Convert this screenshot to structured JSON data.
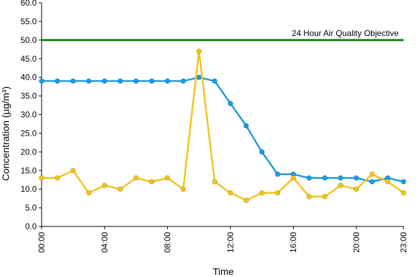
{
  "chart_data": {
    "type": "line",
    "title": "",
    "xlabel": "Time",
    "ylabel": "Concentration (µg/m³)",
    "ylim": [
      0,
      60
    ],
    "yticks": [
      "0.0",
      "5.0",
      "10.0",
      "15.0",
      "20.0",
      "25.0",
      "30.0",
      "35.0",
      "40.0",
      "45.0",
      "50.0",
      "55.0",
      "60.0"
    ],
    "xlim": [
      0,
      23
    ],
    "xticks": [
      {
        "hour": 0,
        "label": "00:00"
      },
      {
        "hour": 4,
        "label": "04:00"
      },
      {
        "hour": 8,
        "label": "08:00"
      },
      {
        "hour": 12,
        "label": "12:00"
      },
      {
        "hour": 16,
        "label": "16:00"
      },
      {
        "hour": 20,
        "label": "20:00"
      },
      {
        "hour": 23,
        "label": "23:00"
      }
    ],
    "x": [
      0,
      1,
      2,
      3,
      4,
      5,
      6,
      7,
      8,
      9,
      10,
      11,
      12,
      13,
      14,
      15,
      16,
      17,
      18,
      19,
      20,
      21,
      22,
      23
    ],
    "series": [
      {
        "color": "#1a9be0",
        "values": [
          39,
          39,
          39,
          39,
          39,
          39,
          39,
          39,
          39,
          39,
          40,
          39,
          33,
          27,
          20,
          14,
          14,
          13,
          13,
          13,
          13,
          12,
          13,
          12
        ]
      },
      {
        "color": "#f0c419",
        "values": [
          13,
          13,
          15,
          9,
          11,
          10,
          13,
          12,
          13,
          10,
          47,
          12,
          9,
          7,
          9,
          9,
          13,
          8,
          8,
          11,
          10,
          14,
          12,
          9
        ]
      }
    ],
    "reference_line": {
      "value": 50,
      "label": "24 Hour Air Quality Objective",
      "color": "#1e7a1e"
    },
    "grid": false,
    "legend": "none"
  }
}
